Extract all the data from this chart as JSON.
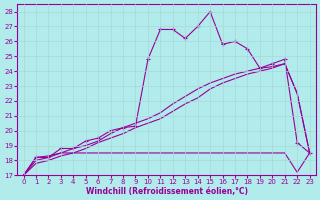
{
  "xlabel": "Windchill (Refroidissement éolien,°C)",
  "background_color": "#b2ebeb",
  "grid_color": "#a8d8d8",
  "line_color": "#990099",
  "xlim": [
    -0.5,
    23.5
  ],
  "ylim": [
    17,
    28.5
  ],
  "xticks": [
    0,
    1,
    2,
    3,
    4,
    5,
    6,
    7,
    8,
    9,
    10,
    11,
    12,
    13,
    14,
    15,
    16,
    17,
    18,
    19,
    20,
    21,
    22,
    23
  ],
  "yticks": [
    17,
    18,
    19,
    20,
    21,
    22,
    23,
    24,
    25,
    26,
    27,
    28
  ],
  "s1_x": [
    0,
    1,
    2,
    3,
    4,
    5,
    6,
    7,
    8,
    9,
    10,
    11,
    12,
    13,
    14,
    15,
    16,
    17,
    18,
    19,
    20,
    21,
    22,
    23
  ],
  "s1_y": [
    17.0,
    18.2,
    18.2,
    18.8,
    18.8,
    19.3,
    19.5,
    20.0,
    20.2,
    20.3,
    24.8,
    26.8,
    26.8,
    26.2,
    27.0,
    28.0,
    25.8,
    26.0,
    25.5,
    24.2,
    24.5,
    24.8,
    19.2,
    18.5
  ],
  "s2_x": [
    0,
    1,
    2,
    3,
    4,
    5,
    6,
    7,
    8,
    9,
    10,
    11,
    12,
    13,
    14,
    15,
    16,
    17,
    18,
    19,
    20,
    21,
    22,
    23
  ],
  "s2_y": [
    17.0,
    18.0,
    18.2,
    18.5,
    18.8,
    19.0,
    19.3,
    19.8,
    20.2,
    20.5,
    20.8,
    21.2,
    21.8,
    22.3,
    22.8,
    23.2,
    23.5,
    23.8,
    24.0,
    24.2,
    24.3,
    24.5,
    22.5,
    18.5
  ],
  "s3_x": [
    0,
    1,
    2,
    3,
    4,
    5,
    6,
    7,
    8,
    9,
    10,
    11,
    12,
    13,
    14,
    15,
    16,
    17,
    18,
    19,
    20,
    21,
    22,
    23
  ],
  "s3_y": [
    17.0,
    17.8,
    18.0,
    18.3,
    18.5,
    18.8,
    19.2,
    19.5,
    19.8,
    20.2,
    20.5,
    20.8,
    21.3,
    21.8,
    22.2,
    22.8,
    23.2,
    23.5,
    23.8,
    24.0,
    24.2,
    24.5,
    22.5,
    18.5
  ],
  "s4_x": [
    0,
    1,
    2,
    3,
    4,
    5,
    10,
    11,
    12,
    13,
    14,
    15,
    16,
    17,
    18,
    19,
    20,
    21,
    22,
    23
  ],
  "s4_y": [
    17.0,
    18.2,
    18.3,
    18.5,
    18.5,
    18.5,
    18.5,
    18.5,
    18.5,
    18.5,
    18.5,
    18.5,
    18.5,
    18.5,
    18.5,
    18.5,
    18.5,
    18.5,
    17.2,
    18.5
  ]
}
